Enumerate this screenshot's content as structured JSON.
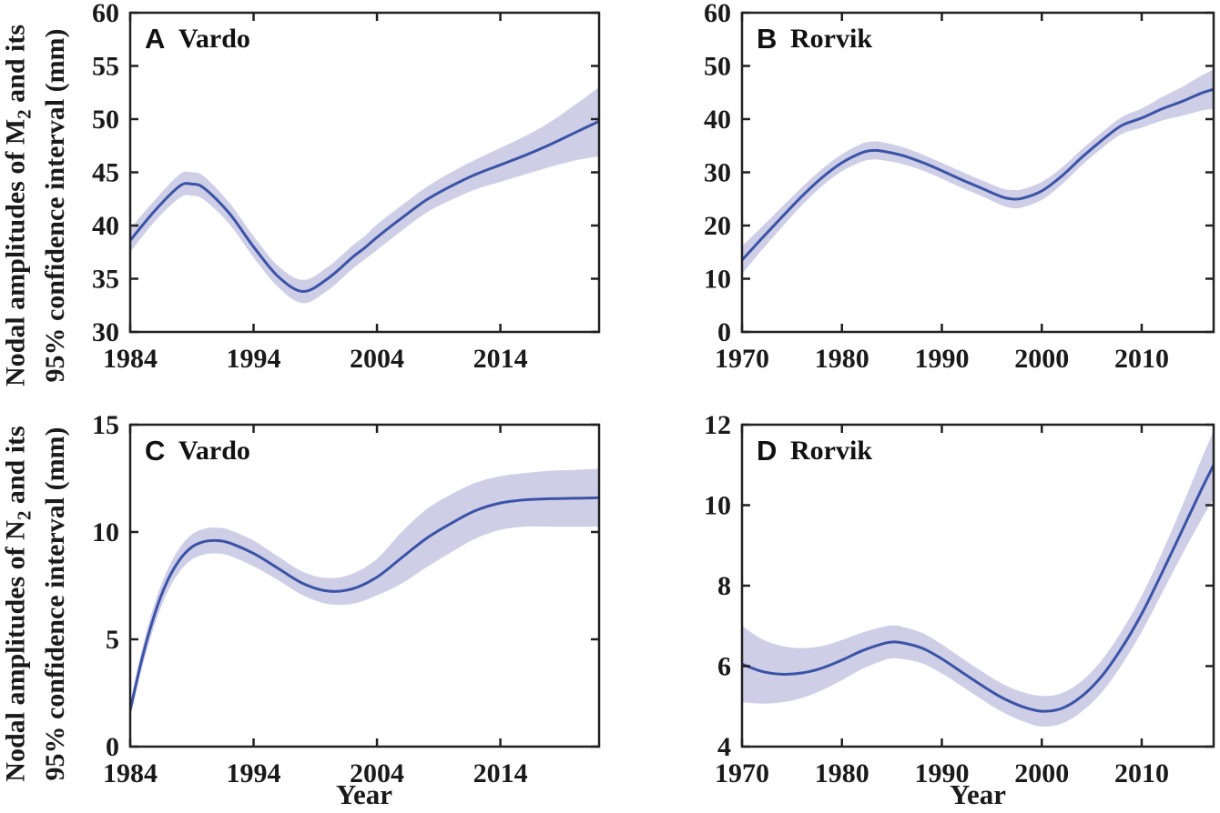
{
  "figure": {
    "background": "#FFFFFF",
    "line_color": "#3A53A6",
    "band_color": "#CFCEE7",
    "axis_color": "#212121",
    "text_color": "#1A1A1A"
  },
  "labels": {
    "x_axis": "Year",
    "y_top_line1_prefix": "Nodal amplitudes of M",
    "y_top_line1_sub": "2",
    "y_top_line1_suffix": " and its",
    "y_top_line2": "95% confidence interval (mm)",
    "y_bottom_line1_prefix": "Nodal amplitudes of N",
    "y_bottom_line1_sub": "2",
    "y_bottom_line1_suffix": " and its",
    "y_bottom_line2": "95% confidence interval (mm)"
  },
  "chart_data": [
    {
      "type": "line",
      "panel_label": "A",
      "title": "Vardo",
      "xlabel": "Year",
      "ylabel": "Nodal amplitudes of M2 and its 95% confidence interval (mm)",
      "xlim": [
        1984,
        2022
      ],
      "ylim": [
        30,
        60
      ],
      "xticks": [
        1984,
        1994,
        2004,
        2014
      ],
      "yticks": [
        30,
        35,
        40,
        45,
        50,
        55,
        60
      ],
      "grid": false,
      "legend": null,
      "series": [
        {
          "name": "M2 nodal amplitude with 95% confidence interval",
          "x": [
            1984,
            1986,
            1988,
            1989,
            1990,
            1992,
            1994,
            1996,
            1998,
            2000,
            2002,
            2003,
            2004,
            2006,
            2008,
            2010,
            2012,
            2014,
            2016,
            2018,
            2020,
            2022
          ],
          "y": [
            38.6,
            41.4,
            43.7,
            43.9,
            43.5,
            41.2,
            38.0,
            35.2,
            33.8,
            35.0,
            37.0,
            37.9,
            38.9,
            40.7,
            42.4,
            43.7,
            44.8,
            45.7,
            46.6,
            47.6,
            48.7,
            49.8
          ],
          "y_upper": [
            39.7,
            42.4,
            44.8,
            45.0,
            44.6,
            42.2,
            39.0,
            36.2,
            34.9,
            36.1,
            38.1,
            39.0,
            40.1,
            41.9,
            43.6,
            45.0,
            46.2,
            47.3,
            48.4,
            49.7,
            51.3,
            53.0
          ],
          "y_lower": [
            37.5,
            40.4,
            42.6,
            42.8,
            42.4,
            40.2,
            37.0,
            34.2,
            32.7,
            33.9,
            35.9,
            36.8,
            37.7,
            39.5,
            41.2,
            42.4,
            43.4,
            44.1,
            44.8,
            45.5,
            46.1,
            46.5
          ]
        }
      ]
    },
    {
      "type": "line",
      "panel_label": "B",
      "title": "Rorvik",
      "xlabel": "Year",
      "ylabel": "Nodal amplitudes of M2 and its 95% confidence interval (mm)",
      "xlim": [
        1970,
        2017.2
      ],
      "ylim": [
        0,
        60
      ],
      "xticks": [
        1970,
        1980,
        1990,
        2000,
        2010
      ],
      "yticks": [
        0,
        10,
        20,
        30,
        40,
        50,
        60
      ],
      "grid": false,
      "legend": null,
      "series": [
        {
          "name": "M2 nodal amplitude with 95% confidence interval",
          "x": [
            1970,
            1972,
            1974,
            1976,
            1978,
            1980,
            1982,
            1983,
            1984,
            1986,
            1988,
            1990,
            1992,
            1994,
            1996,
            1997,
            1998,
            2000,
            2002,
            2004,
            2006,
            2008,
            2010,
            2012,
            2014,
            2016,
            2017.2
          ],
          "y": [
            13.5,
            17.6,
            21.6,
            25.5,
            29.0,
            31.8,
            33.7,
            34.1,
            34.0,
            33.2,
            31.9,
            30.3,
            28.6,
            27.0,
            25.4,
            25.0,
            25.1,
            26.5,
            29.3,
            32.8,
            36.0,
            38.8,
            40.2,
            41.9,
            43.3,
            44.9,
            45.6
          ],
          "y_upper": [
            16.1,
            19.8,
            23.5,
            27.2,
            30.6,
            33.4,
            35.4,
            35.8,
            35.7,
            34.8,
            33.4,
            31.8,
            30.1,
            28.5,
            27.0,
            26.7,
            26.8,
            28.2,
            30.9,
            34.3,
            37.5,
            40.4,
            42.0,
            44.1,
            46.0,
            48.2,
            49.3
          ],
          "y_lower": [
            10.9,
            15.4,
            19.7,
            23.8,
            27.4,
            30.2,
            32.0,
            32.4,
            32.3,
            31.6,
            30.4,
            28.8,
            27.1,
            25.5,
            23.8,
            23.3,
            23.4,
            24.8,
            27.7,
            31.3,
            34.5,
            37.2,
            38.4,
            39.7,
            40.6,
            41.6,
            41.9
          ]
        }
      ]
    },
    {
      "type": "line",
      "panel_label": "C",
      "title": "Vardo",
      "xlabel": "Year",
      "ylabel": "Nodal amplitudes of N2 and its 95% confidence interval (mm)",
      "xlim": [
        1984,
        2022
      ],
      "ylim": [
        0,
        15
      ],
      "xticks": [
        1984,
        1994,
        2004,
        2014
      ],
      "yticks": [
        0,
        5,
        10,
        15
      ],
      "grid": false,
      "legend": null,
      "series": [
        {
          "name": "N2 nodal amplitude with 95% confidence interval",
          "x": [
            1984,
            1985,
            1986,
            1987,
            1988,
            1989,
            1990,
            1991,
            1992,
            1994,
            1996,
            1998,
            2000,
            2002,
            2004,
            2006,
            2008,
            2010,
            2012,
            2014,
            2016,
            2018,
            2020,
            2022
          ],
          "y": [
            1.7,
            4.2,
            6.2,
            7.7,
            8.7,
            9.3,
            9.55,
            9.6,
            9.5,
            9.0,
            8.3,
            7.6,
            7.25,
            7.35,
            7.9,
            8.8,
            9.7,
            10.4,
            11.0,
            11.35,
            11.5,
            11.55,
            11.57,
            11.6
          ],
          "y_upper": [
            2.05,
            4.65,
            6.7,
            8.22,
            9.25,
            9.88,
            10.15,
            10.2,
            10.1,
            9.6,
            8.85,
            8.15,
            7.85,
            8.05,
            8.75,
            10.0,
            11.05,
            11.75,
            12.3,
            12.6,
            12.75,
            12.85,
            12.89,
            12.95
          ],
          "y_lower": [
            1.35,
            3.75,
            5.7,
            7.18,
            8.15,
            8.72,
            8.95,
            9.0,
            8.9,
            8.4,
            7.75,
            7.05,
            6.65,
            6.65,
            7.05,
            7.6,
            8.35,
            9.05,
            9.7,
            10.1,
            10.25,
            10.25,
            10.25,
            10.25
          ]
        }
      ]
    },
    {
      "type": "line",
      "panel_label": "D",
      "title": "Rorvik",
      "xlabel": "Year",
      "ylabel": "Nodal amplitudes of N2 and its 95% confidence interval (mm)",
      "xlim": [
        1970,
        2017.2
      ],
      "ylim": [
        4,
        12
      ],
      "xticks": [
        1970,
        1980,
        1990,
        2000,
        2010
      ],
      "yticks": [
        4,
        6,
        8,
        10,
        12
      ],
      "grid": false,
      "legend": null,
      "series": [
        {
          "name": "N2 nodal amplitude with 95% confidence interval",
          "x": [
            1970,
            1972,
            1974,
            1976,
            1978,
            1980,
            1982,
            1984,
            1985,
            1986,
            1988,
            1990,
            1992,
            1994,
            1996,
            1998,
            2000,
            2002,
            2004,
            2006,
            2008,
            2010,
            2012,
            2014,
            2016,
            2017.2
          ],
          "y": [
            6.05,
            5.87,
            5.8,
            5.83,
            5.95,
            6.15,
            6.38,
            6.55,
            6.6,
            6.58,
            6.45,
            6.18,
            5.85,
            5.52,
            5.22,
            5.0,
            4.88,
            4.95,
            5.25,
            5.75,
            6.45,
            7.3,
            8.3,
            9.35,
            10.4,
            11.0
          ],
          "y_upper": [
            7.0,
            6.67,
            6.5,
            6.45,
            6.5,
            6.65,
            6.83,
            6.97,
            7.01,
            6.98,
            6.83,
            6.54,
            6.2,
            5.87,
            5.57,
            5.36,
            5.26,
            5.33,
            5.63,
            6.15,
            6.87,
            7.75,
            8.8,
            9.95,
            11.15,
            11.85
          ],
          "y_lower": [
            5.1,
            5.07,
            5.1,
            5.21,
            5.4,
            5.65,
            5.93,
            6.13,
            6.19,
            6.18,
            6.07,
            5.82,
            5.5,
            5.17,
            4.87,
            4.64,
            4.5,
            4.57,
            4.87,
            5.35,
            6.03,
            6.85,
            7.8,
            8.75,
            9.65,
            10.15
          ]
        }
      ]
    }
  ]
}
